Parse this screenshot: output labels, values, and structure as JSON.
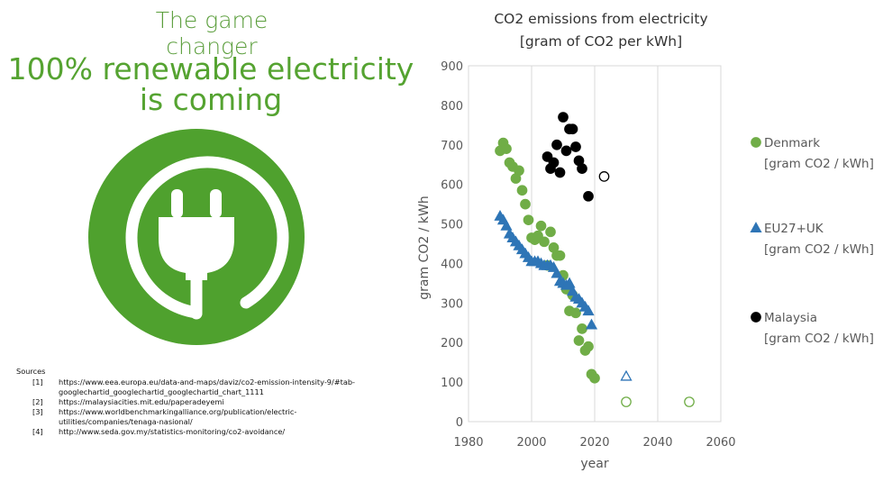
{
  "slide": {
    "subtitle": "The game changer",
    "headline_line1": "100% renewable electricity",
    "headline_line2": "is coming",
    "logo_icon": "plug-icon",
    "logo_color": "#4fa12e"
  },
  "sources": {
    "title": "Sources",
    "items": [
      {
        "ref": "[1]",
        "url": "https://www.eea.europa.eu/data-and-maps/daviz/co2-emission-intensity-9/#tab-\ngooglechartid_googlechartid_googlechartid_chart_1111"
      },
      {
        "ref": "[2]",
        "url": "https://malaysiacities.mit.edu/paperadeyemi"
      },
      {
        "ref": "[3]",
        "url": "https://www.worldbenchmarkingalliance.org/publication/electric-\nutilities/companies/tenaga-nasional/"
      },
      {
        "ref": "[4]",
        "url": "http://www.seda.gov.my/statistics-monitoring/co2-avoidance/"
      }
    ]
  },
  "chart_data": {
    "type": "scatter",
    "title_line1": "CO2 emissions from electricity",
    "title_line2": "[gram of CO2 per kWh]",
    "xlabel": "year",
    "ylabel": "gram CO2 / kWh",
    "xlim": [
      1980,
      2060
    ],
    "ylim": [
      0,
      900
    ],
    "xticks": [
      1980,
      2000,
      2020,
      2040,
      2060
    ],
    "yticks": [
      0,
      100,
      200,
      300,
      400,
      500,
      600,
      700,
      800,
      900
    ],
    "grid": "vertical",
    "legend_position": "right",
    "series": [
      {
        "name": "Denmark",
        "unit": "[gram CO2 / kWh]",
        "color": "#70ad47",
        "marker": "circle",
        "points": [
          [
            1990,
            685
          ],
          [
            1991,
            705
          ],
          [
            1992,
            690
          ],
          [
            1993,
            655
          ],
          [
            1994,
            645
          ],
          [
            1995,
            615
          ],
          [
            1996,
            635
          ],
          [
            1997,
            585
          ],
          [
            1998,
            550
          ],
          [
            1999,
            510
          ],
          [
            2000,
            465
          ],
          [
            2001,
            460
          ],
          [
            2002,
            470
          ],
          [
            2003,
            495
          ],
          [
            2004,
            455
          ],
          [
            2005,
            395
          ],
          [
            2006,
            480
          ],
          [
            2007,
            440
          ],
          [
            2008,
            420
          ],
          [
            2009,
            420
          ],
          [
            2010,
            370
          ],
          [
            2011,
            335
          ],
          [
            2012,
            280
          ],
          [
            2013,
            320
          ],
          [
            2014,
            275
          ],
          [
            2015,
            205
          ],
          [
            2016,
            235
          ],
          [
            2017,
            180
          ],
          [
            2018,
            190
          ],
          [
            2019,
            120
          ],
          [
            2020,
            110
          ]
        ],
        "projected": [
          [
            2030,
            50
          ],
          [
            2050,
            50
          ]
        ]
      },
      {
        "name": "EU27+UK",
        "unit": "[gram CO2 / kWh]",
        "color": "#2e75b6",
        "marker": "triangle",
        "points": [
          [
            1990,
            520
          ],
          [
            1991,
            510
          ],
          [
            1992,
            495
          ],
          [
            1993,
            475
          ],
          [
            1994,
            465
          ],
          [
            1995,
            455
          ],
          [
            1996,
            445
          ],
          [
            1997,
            435
          ],
          [
            1998,
            425
          ],
          [
            1999,
            415
          ],
          [
            2000,
            405
          ],
          [
            2001,
            405
          ],
          [
            2002,
            405
          ],
          [
            2003,
            400
          ],
          [
            2004,
            395
          ],
          [
            2005,
            395
          ],
          [
            2006,
            395
          ],
          [
            2007,
            390
          ],
          [
            2008,
            375
          ],
          [
            2009,
            355
          ],
          [
            2010,
            350
          ],
          [
            2011,
            345
          ],
          [
            2012,
            350
          ],
          [
            2013,
            330
          ],
          [
            2014,
            315
          ],
          [
            2015,
            310
          ],
          [
            2016,
            300
          ],
          [
            2017,
            290
          ],
          [
            2018,
            280
          ],
          [
            2019,
            245
          ]
        ],
        "projected": [
          [
            2030,
            115
          ]
        ]
      },
      {
        "name": "Malaysia",
        "unit": "[gram CO2 / kWh]",
        "color": "#000000",
        "marker": "circle",
        "points": [
          [
            2005,
            670
          ],
          [
            2006,
            640
          ],
          [
            2007,
            655
          ],
          [
            2008,
            700
          ],
          [
            2009,
            630
          ],
          [
            2010,
            770
          ],
          [
            2011,
            685
          ],
          [
            2012,
            740
          ],
          [
            2013,
            740
          ],
          [
            2014,
            695
          ],
          [
            2015,
            660
          ],
          [
            2016,
            640
          ],
          [
            2018,
            570
          ]
        ],
        "projected": [
          [
            2023,
            620
          ]
        ]
      }
    ]
  }
}
